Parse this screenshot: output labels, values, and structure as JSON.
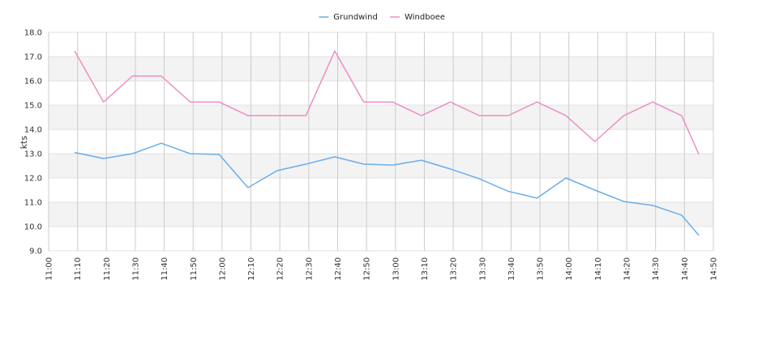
{
  "chart_data": {
    "type": "line",
    "title": "",
    "xlabel": "",
    "ylabel": "kts",
    "ylim": [
      9.0,
      18.0
    ],
    "xlim": [
      "11:00",
      "14:50"
    ],
    "y_ticks": [
      "9.0",
      "10.0",
      "11.0",
      "12.0",
      "13.0",
      "14.0",
      "15.0",
      "16.0",
      "17.0",
      "18.0"
    ],
    "x_ticks": [
      "11:00",
      "11:10",
      "11:20",
      "11:30",
      "11:40",
      "11:50",
      "12:00",
      "12:10",
      "12:20",
      "12:30",
      "12:40",
      "12:50",
      "13:00",
      "13:10",
      "13:20",
      "13:30",
      "13:40",
      "13:50",
      "14:00",
      "14:10",
      "14:20",
      "14:30",
      "14:40",
      "14:50"
    ],
    "grid": true,
    "legend_position": "top-center",
    "series": [
      {
        "name": "Grundwind",
        "color": "#6aaee8",
        "x": [
          "11:09",
          "11:19",
          "11:29",
          "11:39",
          "11:49",
          "11:59",
          "12:09",
          "12:19",
          "12:29",
          "12:39",
          "12:49",
          "12:59",
          "13:09",
          "13:19",
          "13:29",
          "13:39",
          "13:49",
          "13:59",
          "14:09",
          "14:19",
          "14:29",
          "14:39",
          "14:45"
        ],
        "values": [
          13.05,
          12.8,
          13.0,
          13.43,
          13.0,
          12.97,
          11.6,
          12.3,
          12.57,
          12.87,
          12.57,
          12.53,
          12.73,
          12.37,
          11.97,
          11.45,
          11.17,
          12.0,
          11.5,
          11.03,
          10.87,
          10.47,
          9.63
        ]
      },
      {
        "name": "Windboee",
        "color": "#ee8ec4",
        "x": [
          "11:09",
          "11:19",
          "11:29",
          "11:39",
          "11:49",
          "11:59",
          "12:09",
          "12:19",
          "12:29",
          "12:39",
          "12:49",
          "12:59",
          "13:09",
          "13:19",
          "13:29",
          "13:39",
          "13:49",
          "13:59",
          "14:09",
          "14:19",
          "14:29",
          "14:39",
          "14:45"
        ],
        "values": [
          17.23,
          15.13,
          16.2,
          16.2,
          15.13,
          15.13,
          14.57,
          14.57,
          14.57,
          17.23,
          15.13,
          15.13,
          14.57,
          15.13,
          14.57,
          14.57,
          15.13,
          14.57,
          13.5,
          14.57,
          15.13,
          14.57,
          12.97
        ]
      }
    ]
  }
}
